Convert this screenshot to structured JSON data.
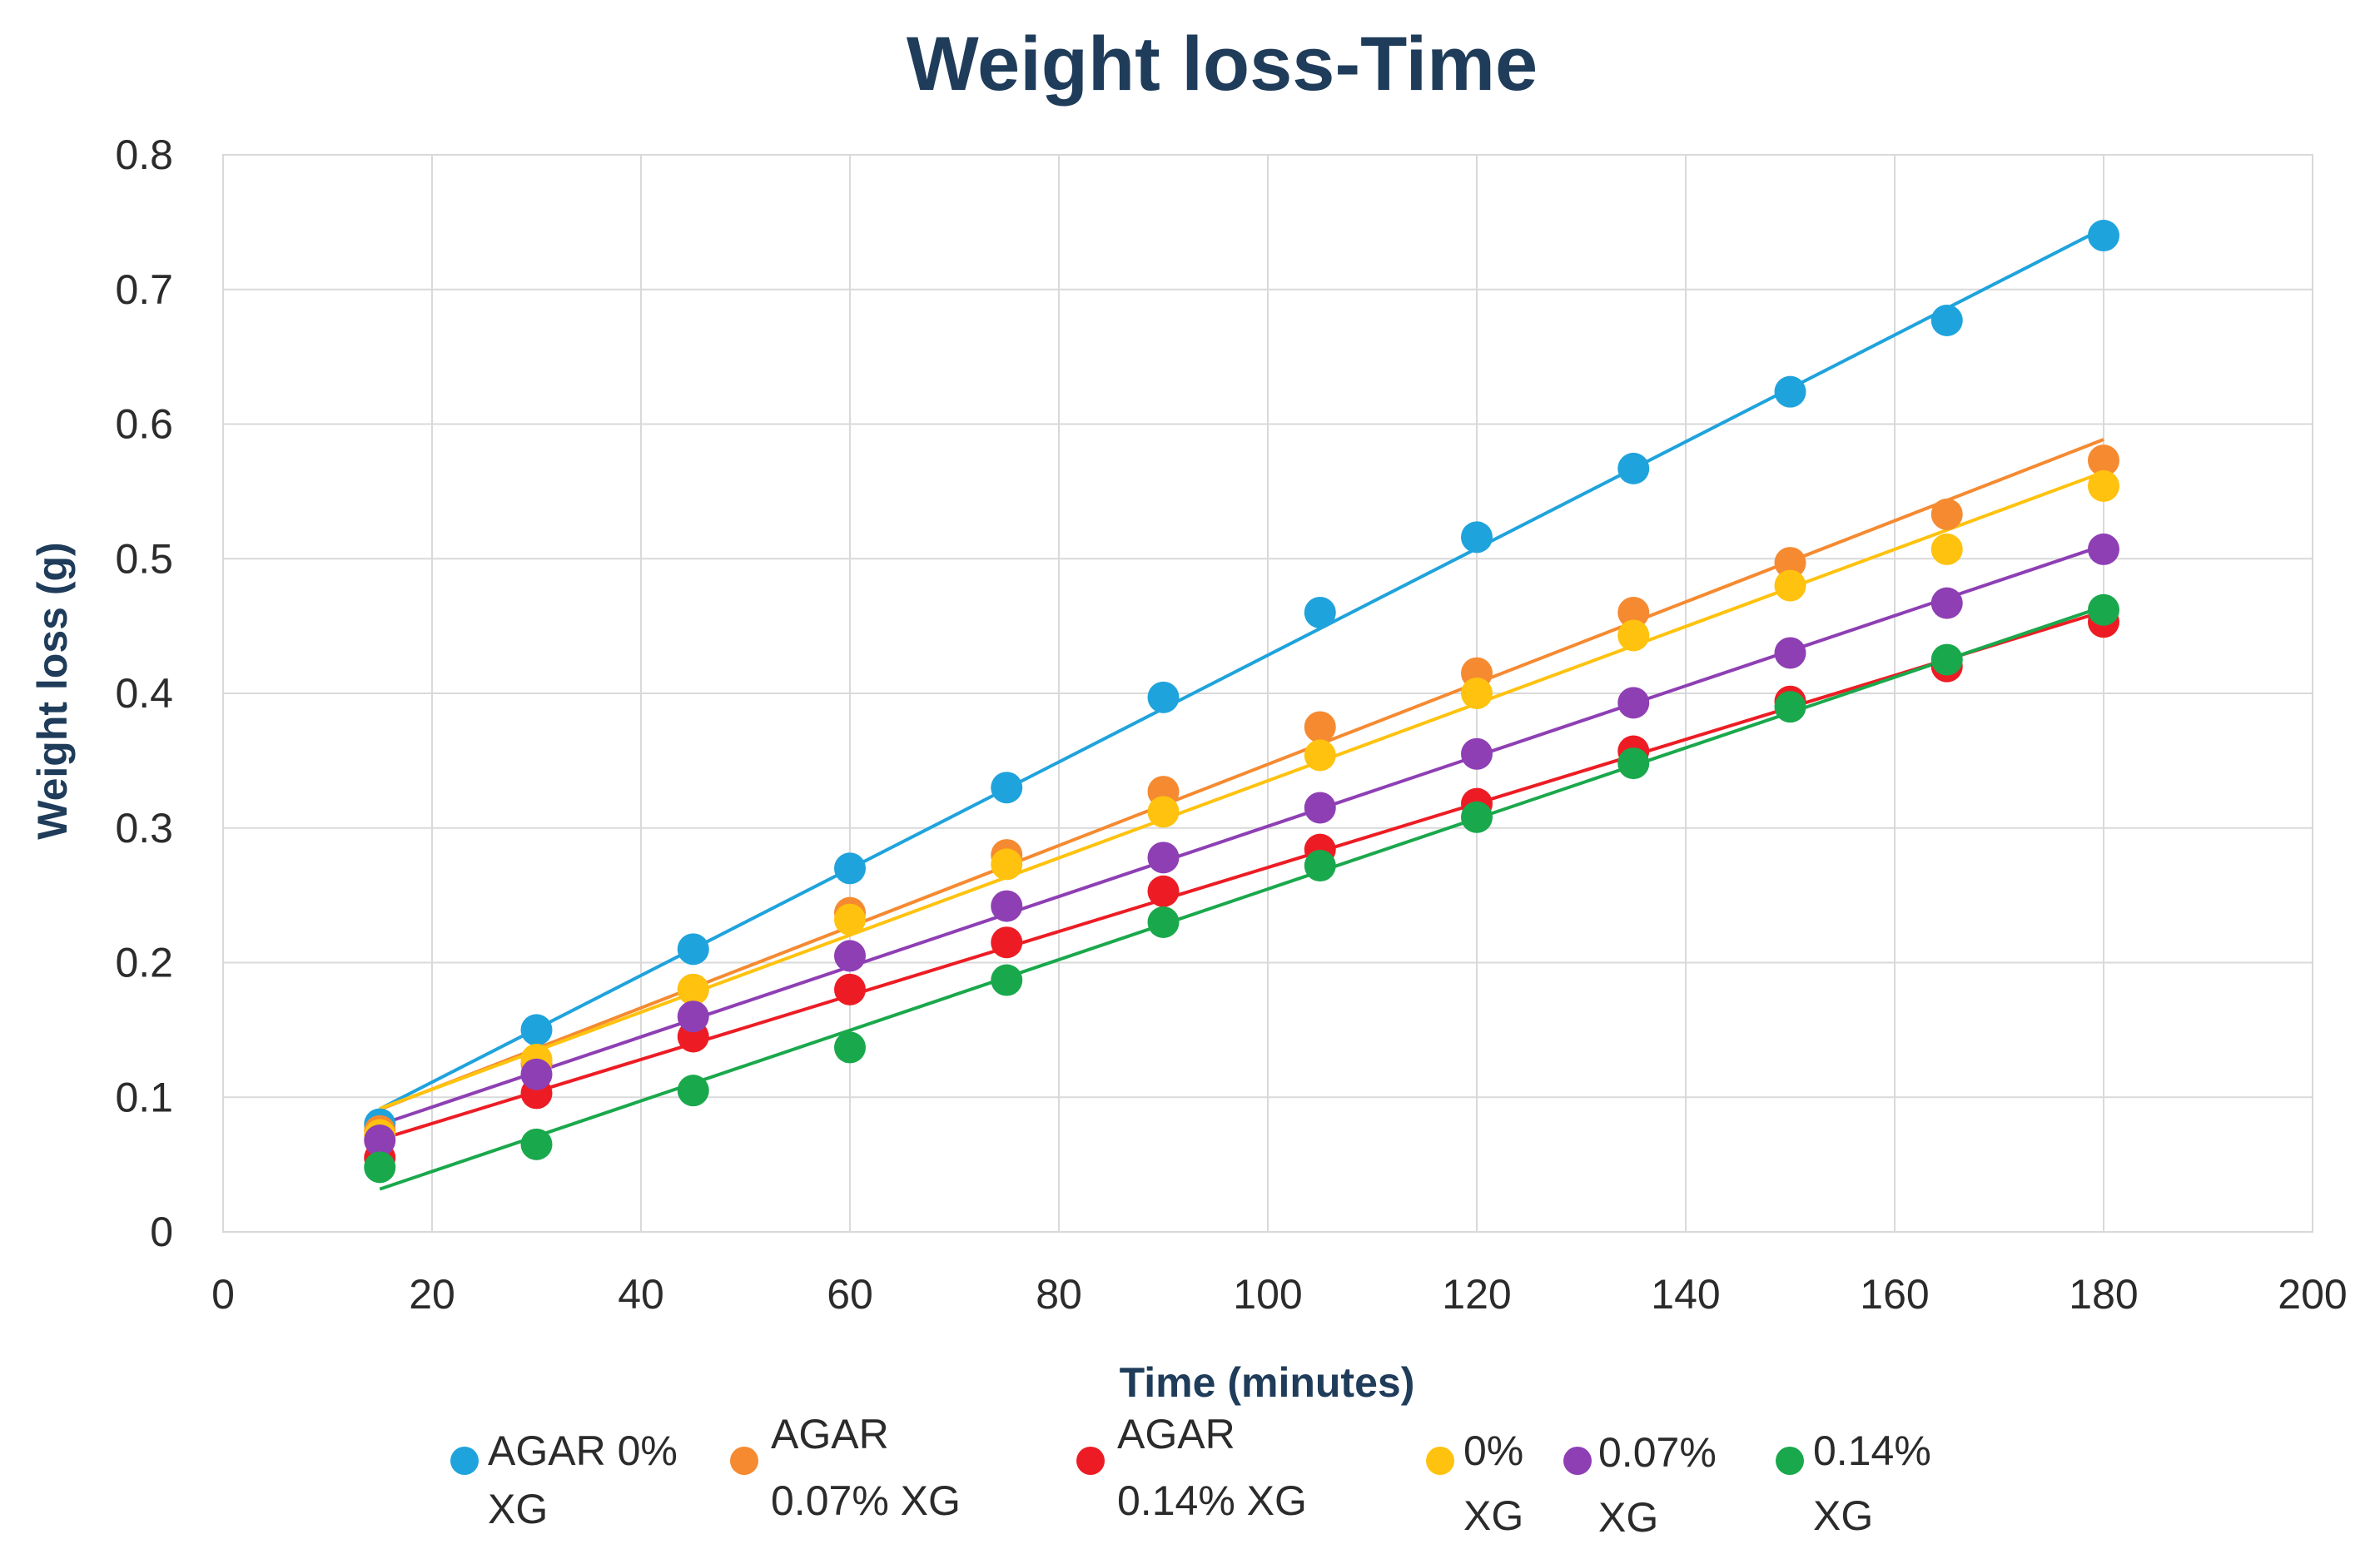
{
  "chart_data": {
    "type": "scatter",
    "title": "Weight loss-Time",
    "xlabel": "Time (minutes)",
    "ylabel": "Weight loss (g)",
    "xlim": [
      0,
      200
    ],
    "ylim": [
      0,
      0.8
    ],
    "x_ticks": [
      "0",
      "20",
      "40",
      "60",
      "80",
      "100",
      "120",
      "140",
      "160",
      "180",
      "200"
    ],
    "y_ticks": [
      "0",
      "0.1",
      "0.2",
      "0.3",
      "0.4",
      "0.5",
      "0.6",
      "0.7",
      "0.8"
    ],
    "grid": true,
    "trendlines": "linear",
    "legend_position": "bottom",
    "x": [
      15,
      30,
      45,
      60,
      75,
      90,
      105,
      120,
      135,
      150,
      165,
      180
    ],
    "series": [
      {
        "name": "AGAR 0% XG",
        "color": "#1fa3dc",
        "values": [
          0.08,
          0.15,
          0.21,
          0.27,
          0.33,
          0.397,
          0.46,
          0.516,
          0.567,
          0.624,
          0.677,
          0.74
        ]
      },
      {
        "name": "AGAR 0.07% XG",
        "color": "#f58a31",
        "values": [
          0.075,
          0.125,
          0.18,
          0.237,
          0.28,
          0.327,
          0.375,
          0.415,
          0.46,
          0.497,
          0.533,
          0.573
        ]
      },
      {
        "name": "AGAR 0.14% XG",
        "color": "#ed1c24",
        "values": [
          0.055,
          0.103,
          0.145,
          0.18,
          0.215,
          0.253,
          0.284,
          0.318,
          0.357,
          0.394,
          0.42,
          0.453
        ]
      },
      {
        "name": "0% XG",
        "color": "#ffc20e",
        "values": [
          0.072,
          0.128,
          0.18,
          0.232,
          0.273,
          0.312,
          0.354,
          0.4,
          0.443,
          0.48,
          0.507,
          0.554
        ]
      },
      {
        "name": "0.07% XG",
        "color": "#8e3fb4",
        "values": [
          0.068,
          0.117,
          0.16,
          0.205,
          0.242,
          0.278,
          0.315,
          0.355,
          0.393,
          0.43,
          0.467,
          0.507
        ]
      },
      {
        "name": "0.14% XG",
        "color": "#1aa84c",
        "values": [
          0.048,
          0.065,
          0.105,
          0.137,
          0.187,
          0.23,
          0.272,
          0.308,
          0.348,
          0.39,
          0.425,
          0.462
        ]
      }
    ]
  }
}
